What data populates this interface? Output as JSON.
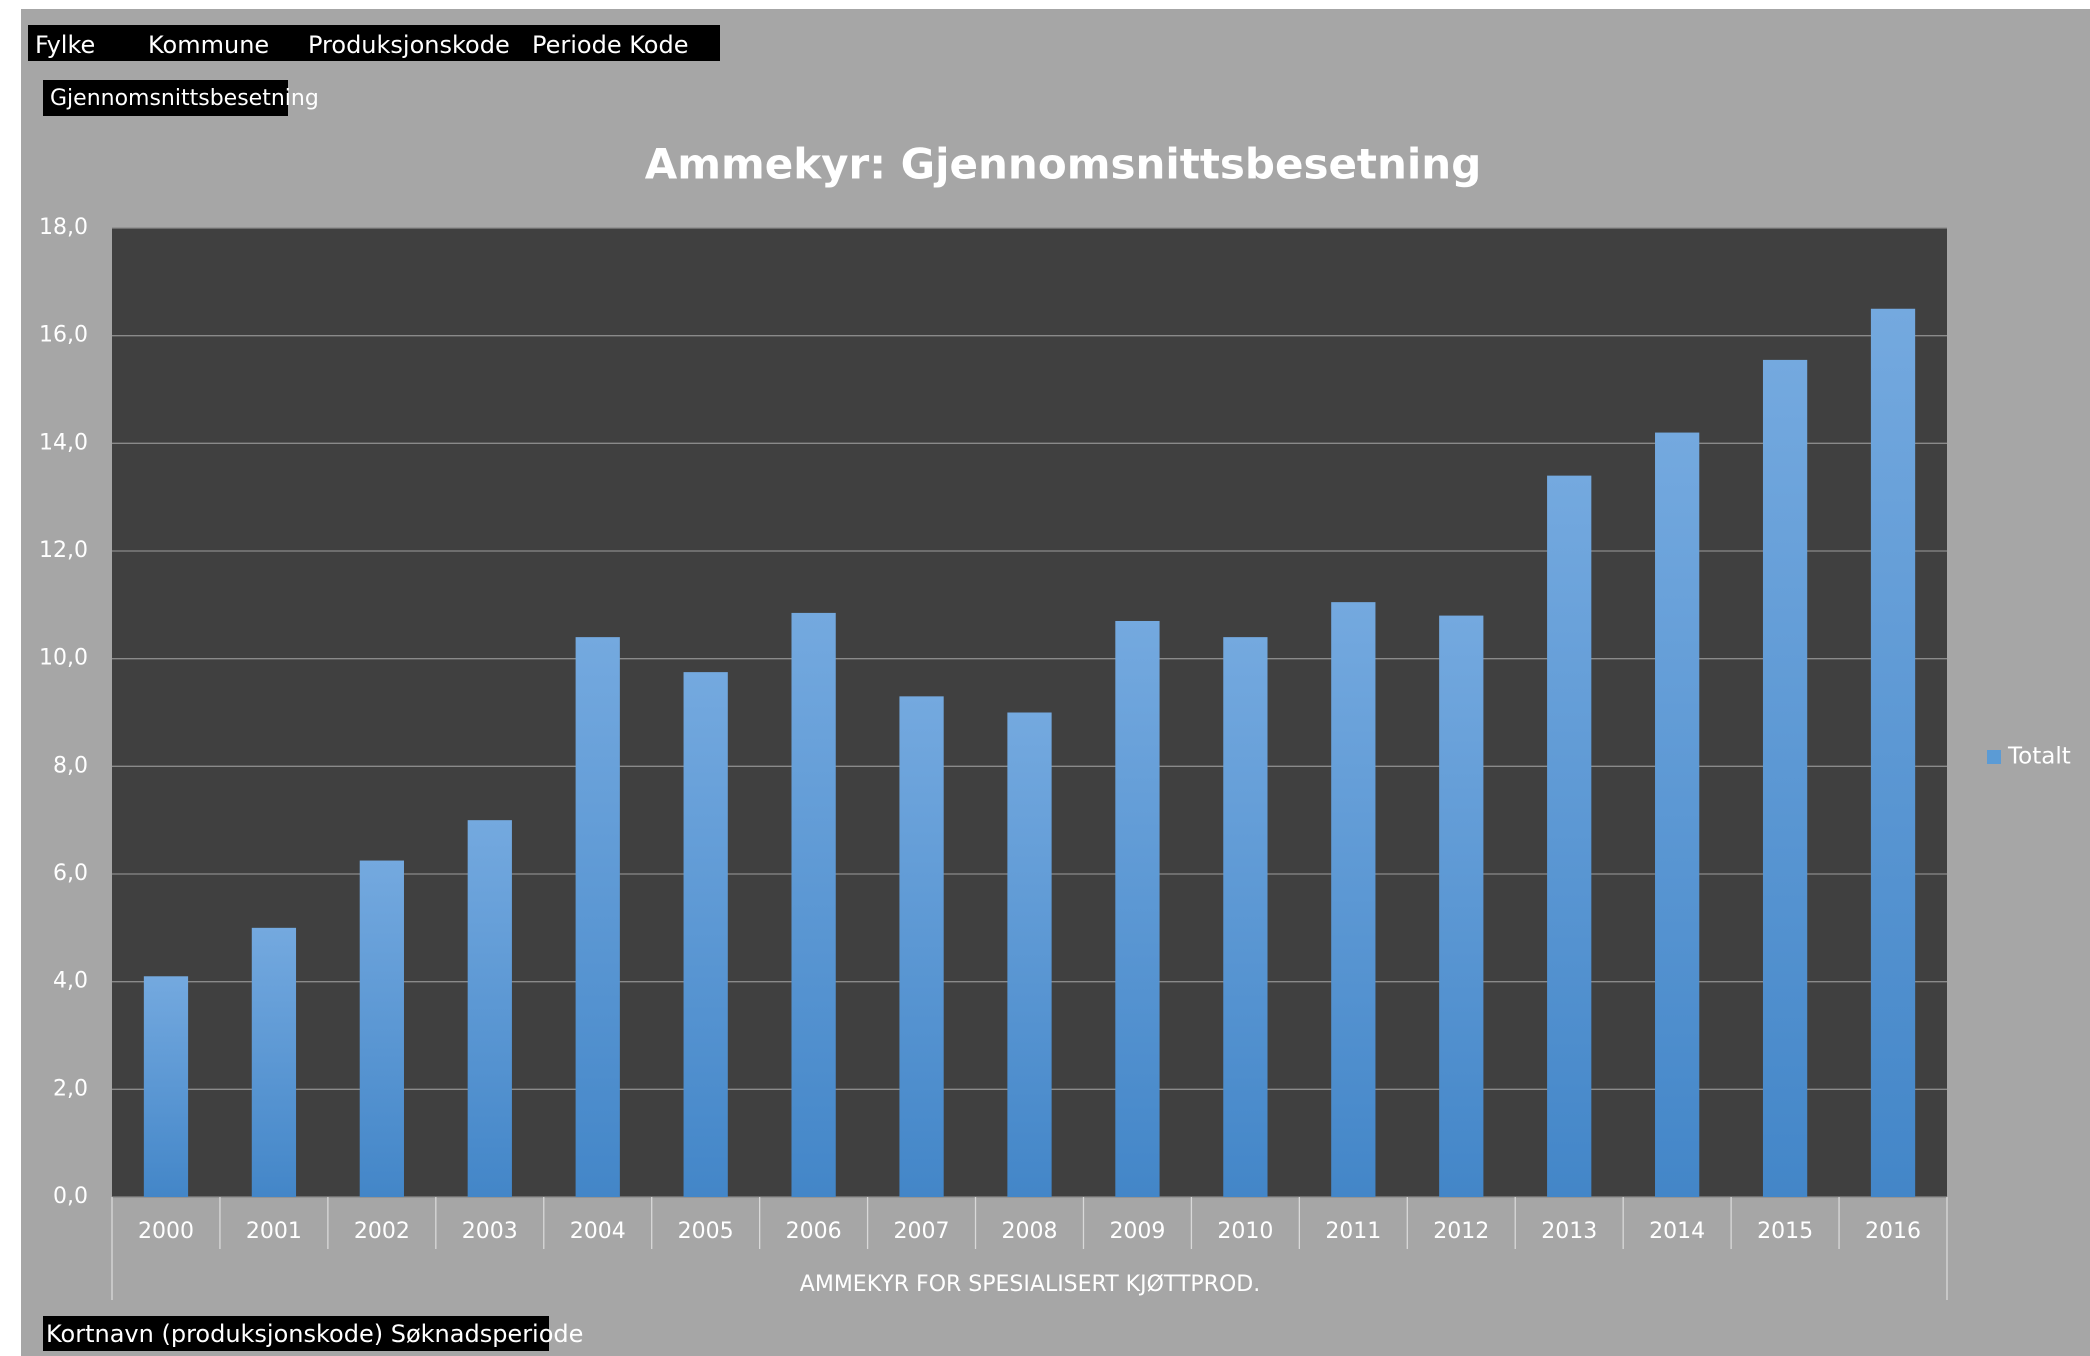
{
  "chart_data": {
    "type": "bar",
    "title": "Ammekyr: Gjennomsnittsbesetning",
    "filters": [
      "Fylke",
      "Kommune",
      "Produksjonskode",
      "Periode Kode"
    ],
    "value_field": "Gjennomsnittsbesetning",
    "row_fields": "Kortnavn (produksjonskode) Søknadsperiode",
    "x_label": "AMMEKYR FOR SPESIALISERT KJØTTPROD.",
    "categories": [
      "2000",
      "2001",
      "2002",
      "2003",
      "2004",
      "2005",
      "2006",
      "2007",
      "2008",
      "2009",
      "2010",
      "2011",
      "2012",
      "2013",
      "2014",
      "2015",
      "2016"
    ],
    "series": [
      {
        "name": "Totalt",
        "color": "#5b9bd5",
        "values": [
          4.1,
          5.0,
          6.25,
          7.0,
          10.4,
          9.75,
          10.85,
          9.3,
          9.0,
          10.7,
          10.4,
          11.05,
          10.8,
          13.4,
          14.2,
          15.55,
          16.5
        ]
      }
    ],
    "ylim": [
      0,
      18
    ],
    "yticks": [
      {
        "value": 0,
        "label": "0,0"
      },
      {
        "value": 2,
        "label": "2,0"
      },
      {
        "value": 4,
        "label": "4,0"
      },
      {
        "value": 6,
        "label": "6,0"
      },
      {
        "value": 8,
        "label": "8,0"
      },
      {
        "value": 10,
        "label": "10,0"
      },
      {
        "value": 12,
        "label": "12,0"
      },
      {
        "value": 14,
        "label": "14,0"
      },
      {
        "value": 16,
        "label": "16,0"
      },
      {
        "value": 18,
        "label": "18,0"
      }
    ],
    "grid": true,
    "legend": "right"
  }
}
